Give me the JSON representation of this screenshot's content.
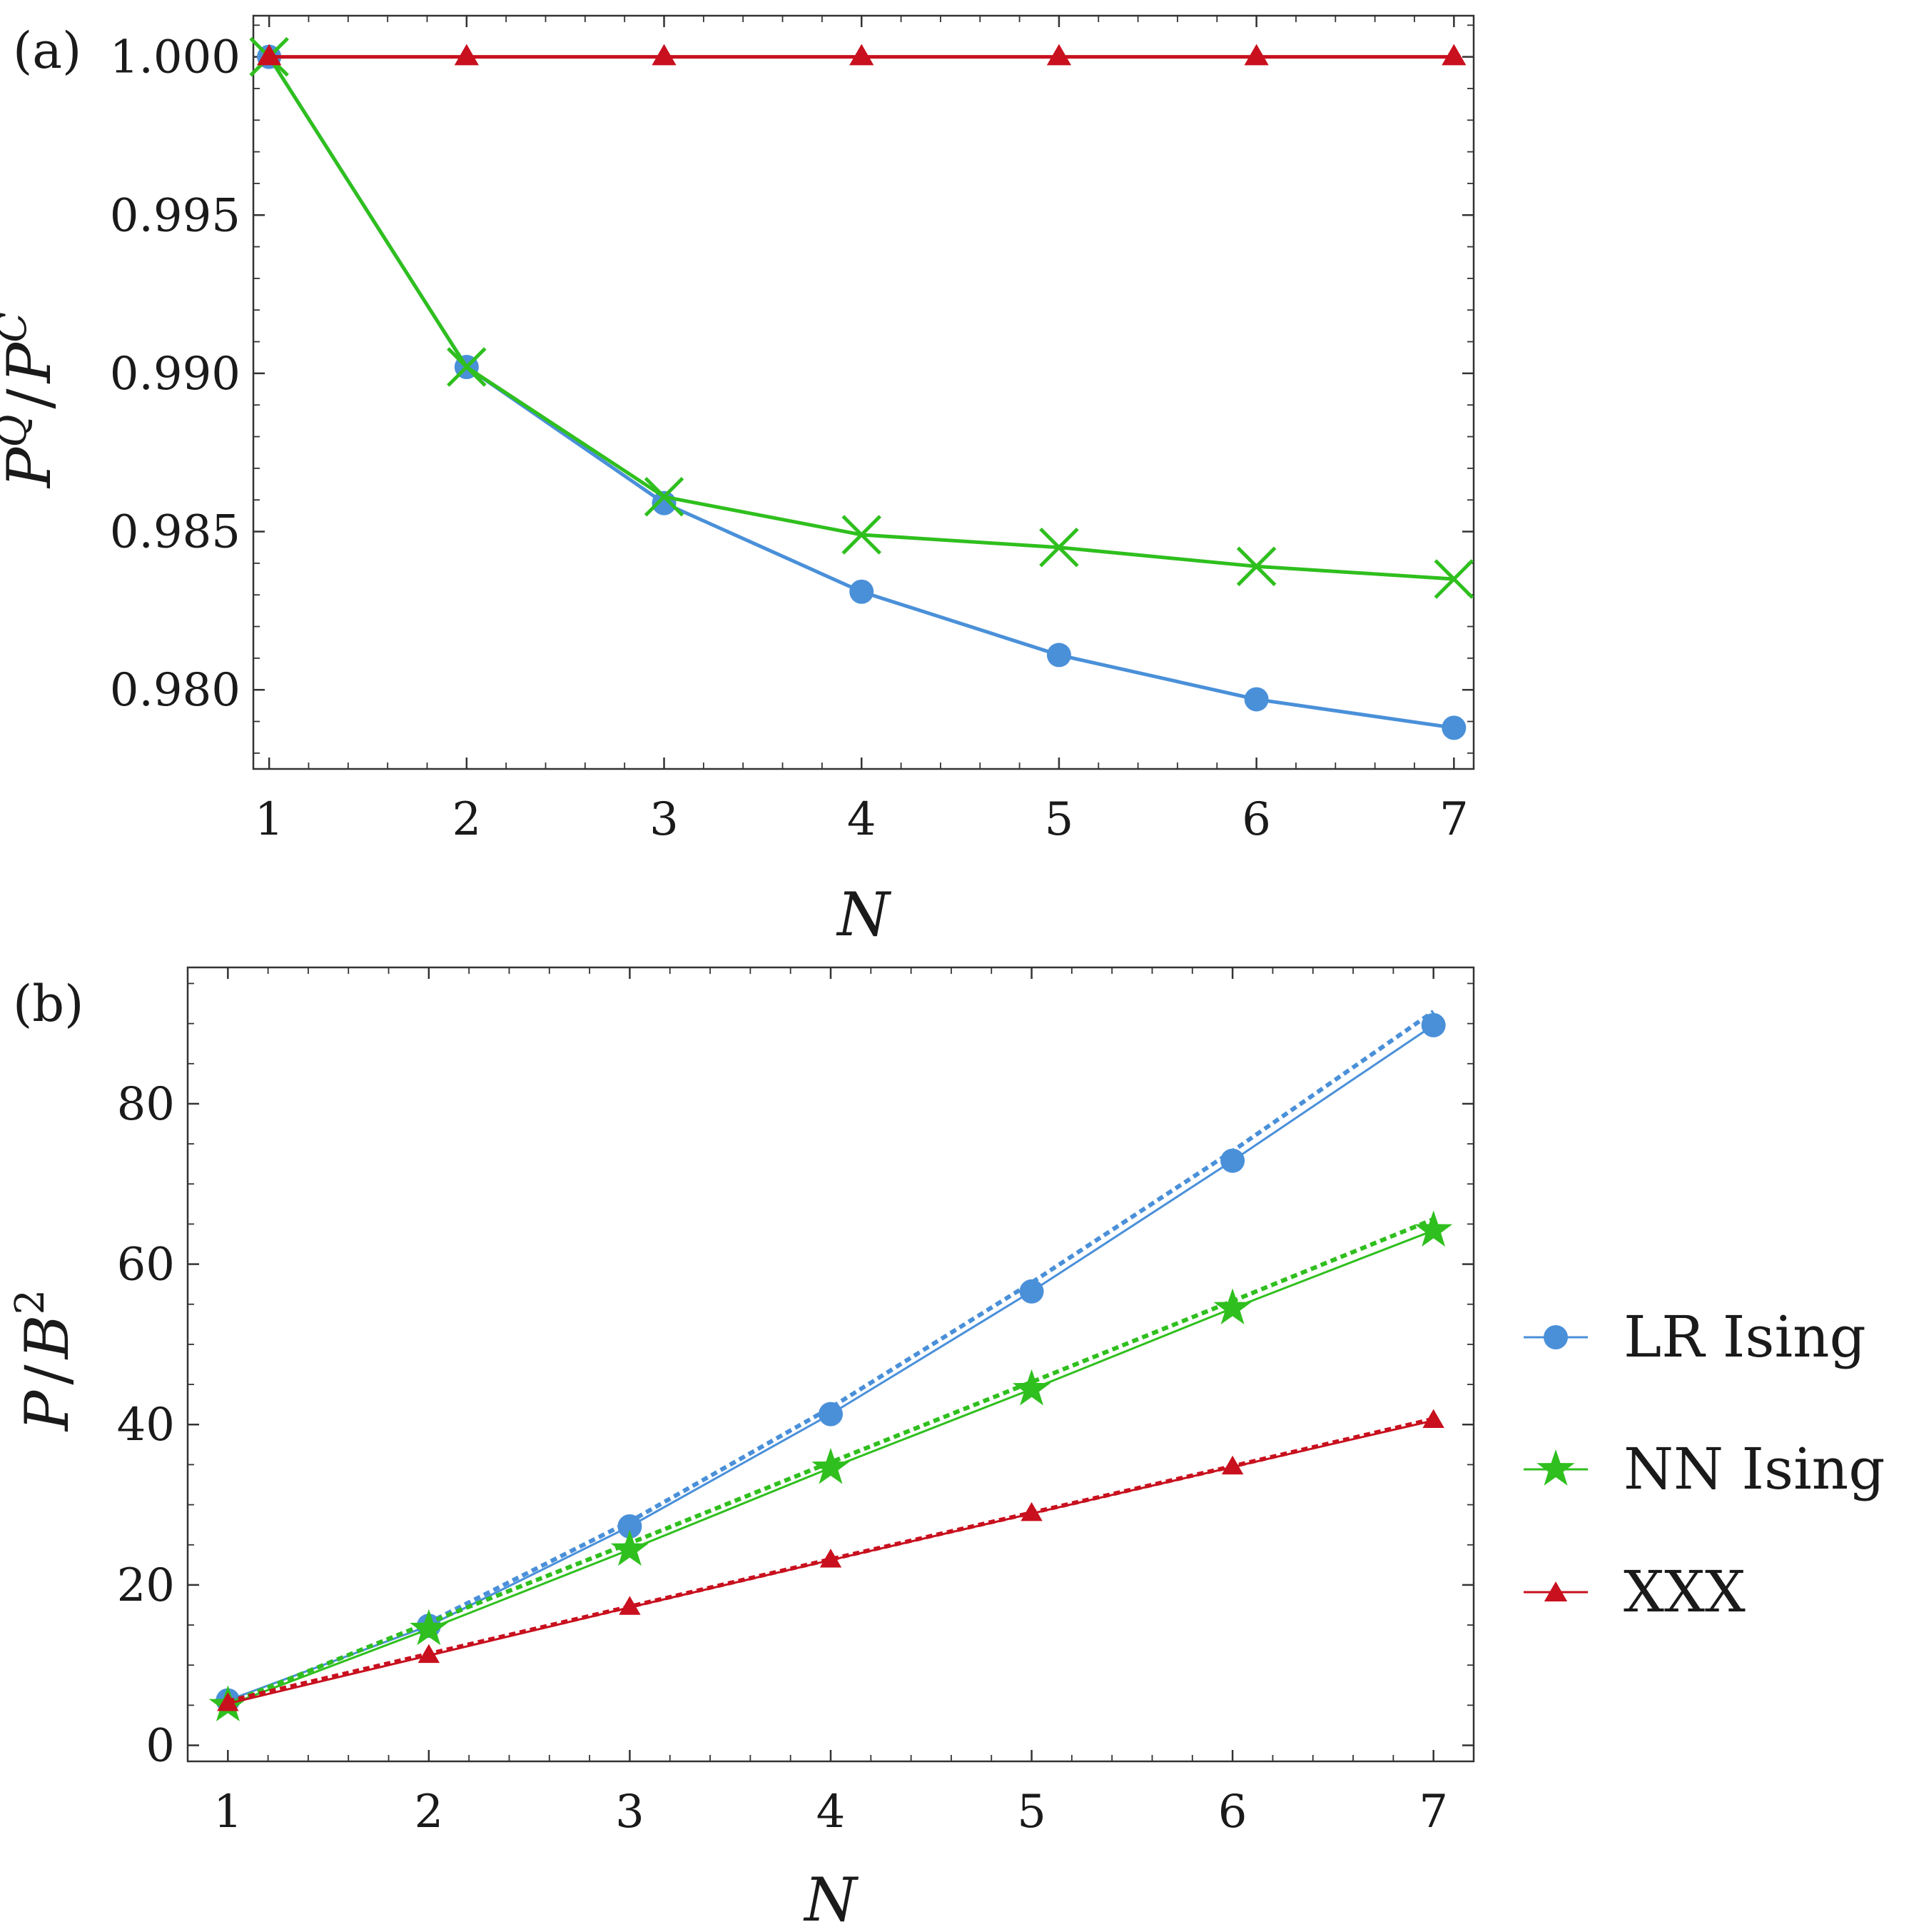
{
  "colors": {
    "lr_ising": "#4a90d9",
    "nn_ising": "#2fbf1e",
    "xxx": "#c8101e",
    "frame": "#333333"
  },
  "chart_data": [
    {
      "panel_label": "(a)",
      "type": "line",
      "xlabel": "N",
      "ylabel": "P^Q / P^C",
      "ylabel_parts": {
        "base1": "P",
        "sup1": "Q",
        "slash": "/",
        "base2": "P",
        "sup2": "C"
      },
      "xlim": [
        0.92,
        7.1
      ],
      "ylim": [
        0.9775,
        1.0013
      ],
      "x_ticks": [
        "1",
        "2",
        "3",
        "4",
        "5",
        "6",
        "7"
      ],
      "y_ticks": [
        "0.980",
        "0.985",
        "0.990",
        "0.995",
        "1.000"
      ],
      "y_tick_values": [
        0.98,
        0.985,
        0.99,
        0.995,
        1.0
      ],
      "x": [
        1,
        2,
        3,
        4,
        5,
        6,
        7
      ],
      "series": [
        {
          "name": "LR Ising",
          "marker": "circle",
          "color_key": "lr_ising",
          "values": [
            1.0,
            0.9902,
            0.9859,
            0.9831,
            0.9811,
            0.9797,
            0.9788
          ]
        },
        {
          "name": "NN Ising",
          "marker": "x",
          "color_key": "nn_ising",
          "values": [
            1.0,
            0.9902,
            0.9861,
            0.9849,
            0.9845,
            0.9839,
            0.9835
          ]
        },
        {
          "name": "XXX",
          "marker": "triangle",
          "color_key": "xxx",
          "values": [
            1.0,
            1.0,
            1.0,
            1.0,
            1.0,
            1.0,
            1.0
          ]
        }
      ]
    },
    {
      "panel_label": "(b)",
      "type": "line",
      "xlabel": "N",
      "ylabel": "P / B^2",
      "ylabel_parts": {
        "base1": "P",
        "slash": "/",
        "base2": "B",
        "sup2": "2"
      },
      "xlim": [
        0.8,
        7.2
      ],
      "ylim": [
        -2,
        97
      ],
      "x_ticks": [
        "1",
        "2",
        "3",
        "4",
        "5",
        "6",
        "7"
      ],
      "y_ticks": [
        "0",
        "20",
        "40",
        "60",
        "80"
      ],
      "y_tick_values": [
        0,
        20,
        40,
        60,
        80
      ],
      "x": [
        1,
        2,
        3,
        4,
        5,
        6,
        7
      ],
      "series": [
        {
          "name": "LR Ising",
          "marker": "circle",
          "color_key": "lr_ising",
          "values": [
            5.6,
            14.9,
            27.3,
            41.3,
            56.6,
            72.9,
            89.8
          ],
          "fit": [
            5.2,
            15.3,
            27.9,
            42.1,
            57.7,
            74.1,
            91.5
          ]
        },
        {
          "name": "NN Ising",
          "marker": "star",
          "color_key": "nn_ising",
          "values": [
            5.0,
            14.5,
            24.4,
            34.6,
            44.4,
            54.5,
            64.2
          ],
          "fit": [
            5.2,
            15.3,
            25.2,
            35.3,
            45.3,
            55.4,
            65.6
          ]
        },
        {
          "name": "XXX",
          "marker": "triangle",
          "color_key": "xxx",
          "values": [
            5.2,
            11.2,
            17.2,
            23.1,
            28.9,
            34.7,
            40.5
          ],
          "fit": [
            5.5,
            11.4,
            17.3,
            23.2,
            29.0,
            34.8,
            40.7
          ]
        }
      ],
      "legend": {
        "placement": "right",
        "entries": [
          "LR Ising",
          "NN Ising",
          "XXX"
        ]
      }
    }
  ]
}
